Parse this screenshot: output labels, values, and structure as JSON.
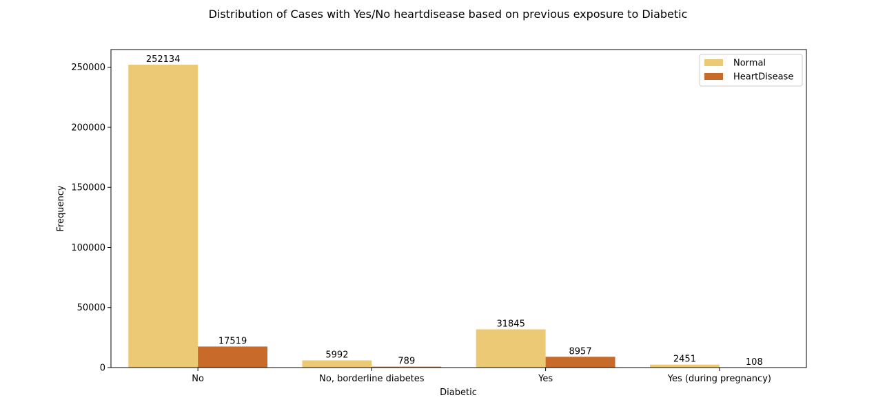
{
  "chart_data": {
    "type": "bar",
    "title": "Distribution of Cases with Yes/No heartdisease based on previous exposure to Diabetic",
    "xlabel": "Diabetic",
    "ylabel": "Frequency",
    "categories": [
      "No",
      "No, borderline diabetes",
      "Yes",
      "Yes (during pregnancy)"
    ],
    "series": [
      {
        "name": "Normal",
        "values": [
          252134,
          5992,
          31845,
          2451
        ],
        "color": "#ecc974"
      },
      {
        "name": "HeartDisease",
        "values": [
          17519,
          789,
          8957,
          108
        ],
        "color": "#c86a2a"
      }
    ],
    "ylim": [
      0,
      264740
    ],
    "yticks": [
      0,
      50000,
      100000,
      150000,
      200000,
      250000
    ],
    "legend_position": "top-right",
    "grid": false
  }
}
